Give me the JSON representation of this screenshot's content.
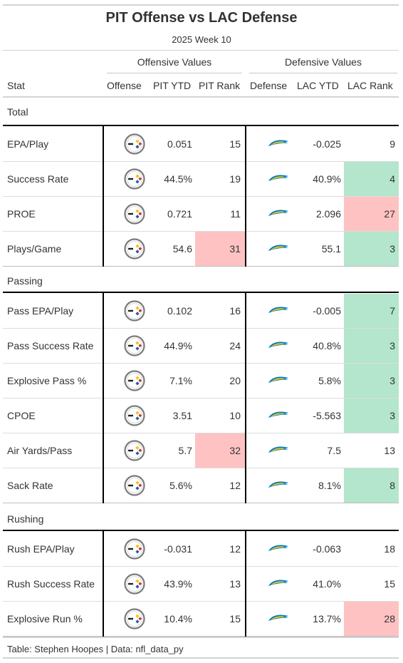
{
  "header": {
    "title": "PIT Offense vs LAC Defense",
    "subtitle": "2025 Week 10",
    "offensive_spanner": "Offensive Values",
    "defensive_spanner": "Defensive Values"
  },
  "columns": {
    "stat": "Stat",
    "offense": "Offense",
    "pit_ytd": "PIT YTD",
    "pit_rank": "PIT Rank",
    "defense": "Defense",
    "lac_ytd": "LAC YTD",
    "lac_rank": "LAC Rank"
  },
  "icons": {
    "offense": "steelers-logo-icon",
    "defense": "chargers-bolt-logo-icon"
  },
  "colors": {
    "good": "#b3e6cc",
    "bad": "#ffc2c2"
  },
  "groups": [
    {
      "label": "Total",
      "rows": [
        {
          "stat": "EPA/Play",
          "pit_ytd": "0.051",
          "pit_rank": "15",
          "pit_hl": "",
          "lac_ytd": "-0.025",
          "lac_rank": "9",
          "lac_hl": ""
        },
        {
          "stat": "Success Rate",
          "pit_ytd": "44.5%",
          "pit_rank": "19",
          "pit_hl": "",
          "lac_ytd": "40.9%",
          "lac_rank": "4",
          "lac_hl": "good"
        },
        {
          "stat": "PROE",
          "pit_ytd": "0.721",
          "pit_rank": "11",
          "pit_hl": "",
          "lac_ytd": "2.096",
          "lac_rank": "27",
          "lac_hl": "bad"
        },
        {
          "stat": "Plays/Game",
          "pit_ytd": "54.6",
          "pit_rank": "31",
          "pit_hl": "bad",
          "lac_ytd": "55.1",
          "lac_rank": "3",
          "lac_hl": "good"
        }
      ]
    },
    {
      "label": "Passing",
      "rows": [
        {
          "stat": "Pass EPA/Play",
          "pit_ytd": "0.102",
          "pit_rank": "16",
          "pit_hl": "",
          "lac_ytd": "-0.005",
          "lac_rank": "7",
          "lac_hl": "good"
        },
        {
          "stat": "Pass Success Rate",
          "pit_ytd": "44.9%",
          "pit_rank": "24",
          "pit_hl": "",
          "lac_ytd": "40.8%",
          "lac_rank": "3",
          "lac_hl": "good"
        },
        {
          "stat": "Explosive Pass %",
          "pit_ytd": "7.1%",
          "pit_rank": "20",
          "pit_hl": "",
          "lac_ytd": "5.8%",
          "lac_rank": "3",
          "lac_hl": "good"
        },
        {
          "stat": "CPOE",
          "pit_ytd": "3.51",
          "pit_rank": "10",
          "pit_hl": "",
          "lac_ytd": "-5.563",
          "lac_rank": "3",
          "lac_hl": "good"
        },
        {
          "stat": "Air Yards/Pass",
          "pit_ytd": "5.7",
          "pit_rank": "32",
          "pit_hl": "bad",
          "lac_ytd": "7.5",
          "lac_rank": "13",
          "lac_hl": ""
        },
        {
          "stat": "Sack Rate",
          "pit_ytd": "5.6%",
          "pit_rank": "12",
          "pit_hl": "",
          "lac_ytd": "8.1%",
          "lac_rank": "8",
          "lac_hl": "good"
        }
      ]
    },
    {
      "label": "Rushing",
      "rows": [
        {
          "stat": "Rush EPA/Play",
          "pit_ytd": "-0.031",
          "pit_rank": "12",
          "pit_hl": "",
          "lac_ytd": "-0.063",
          "lac_rank": "18",
          "lac_hl": ""
        },
        {
          "stat": "Rush Success Rate",
          "pit_ytd": "43.9%",
          "pit_rank": "13",
          "pit_hl": "",
          "lac_ytd": "41.0%",
          "lac_rank": "15",
          "lac_hl": ""
        },
        {
          "stat": "Explosive Run %",
          "pit_ytd": "10.4%",
          "pit_rank": "15",
          "pit_hl": "",
          "lac_ytd": "13.7%",
          "lac_rank": "28",
          "lac_hl": "bad"
        }
      ]
    }
  ],
  "footer": "Table: Stephen Hoopes | Data: nfl_data_py"
}
